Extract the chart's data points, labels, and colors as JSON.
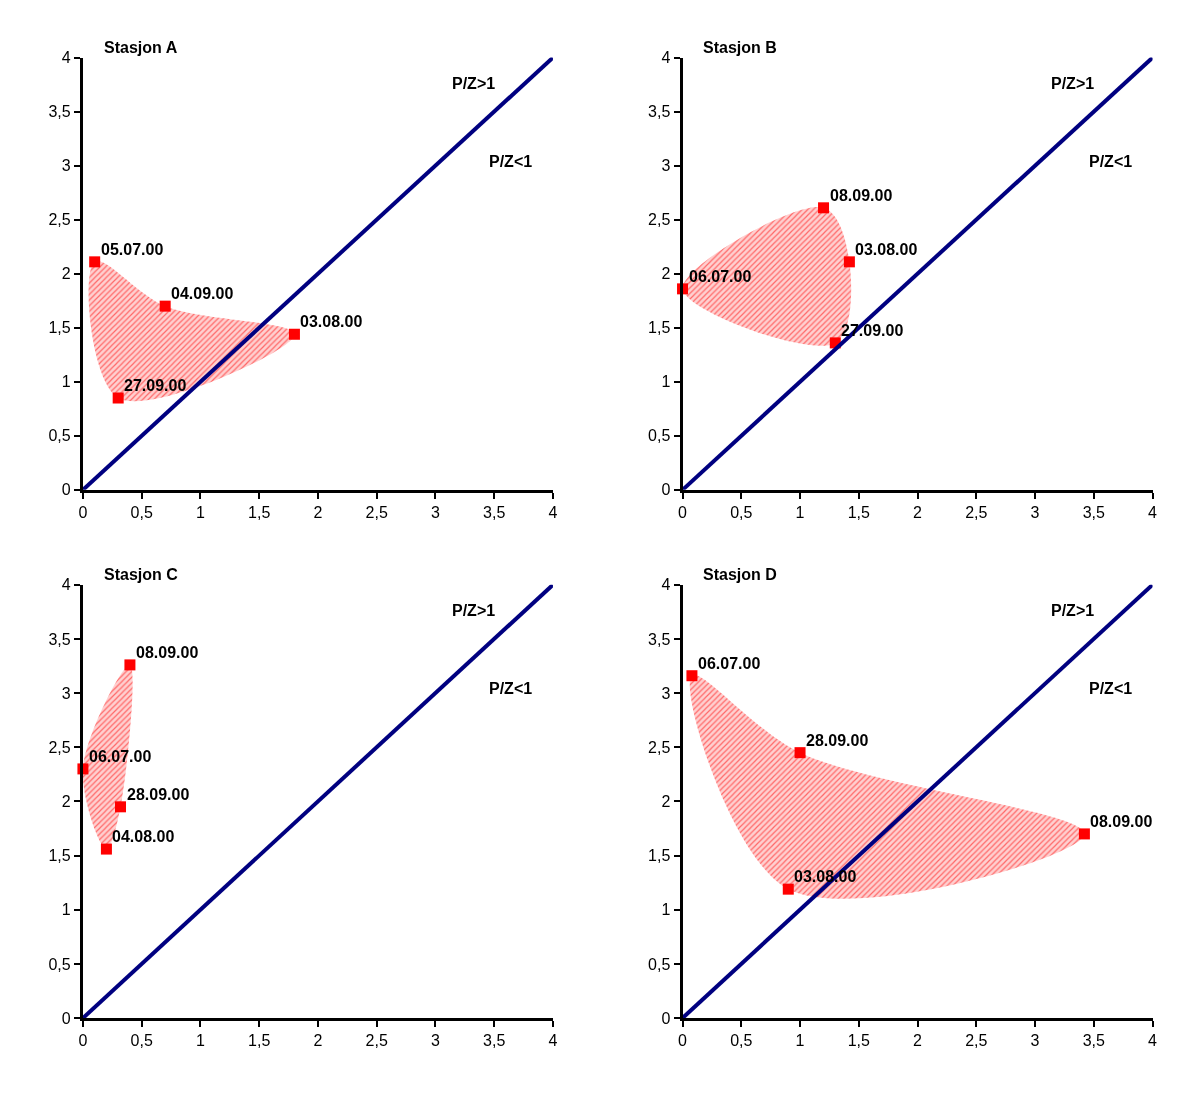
{
  "chart_data": [
    {
      "type": "area",
      "title": "Stasjon A",
      "xlim": [
        0,
        4
      ],
      "ylim": [
        0,
        4
      ],
      "xticks": [
        0,
        {
          "value": 0.5,
          "label": "0,5"
        },
        1,
        {
          "value": 1.5,
          "label": "1,5"
        },
        2,
        {
          "value": 2.5,
          "label": "2,5"
        },
        3,
        {
          "value": 3.5,
          "label": "3,5"
        },
        4
      ],
      "yticks": [
        0,
        {
          "value": 0.5,
          "label": "0,5"
        },
        1,
        {
          "value": 1.5,
          "label": "1,5"
        },
        2,
        {
          "value": 2.5,
          "label": "2,5"
        },
        3,
        {
          "value": 3.5,
          "label": "3,5"
        },
        4
      ],
      "series": [
        {
          "marker": "square",
          "color": "#ff0000",
          "x": [
            0.1,
            0.7,
            1.8,
            0.3
          ],
          "values": [
            2.11,
            1.7,
            1.44,
            0.85
          ]
        },
        {
          "type": "line",
          "color": "#000080",
          "x": [
            0,
            4
          ],
          "values": [
            0,
            4
          ]
        }
      ],
      "annotations": [
        {
          "text": "05.07.00",
          "x": 0.1,
          "y": 2.11
        },
        {
          "text": "04.09.00",
          "x": 0.7,
          "y": 1.7
        },
        {
          "text": "03.08.00",
          "x": 1.8,
          "y": 1.44
        },
        {
          "text": "27.09.00",
          "x": 0.3,
          "y": 0.85
        },
        "P/Z>1",
        "P/Z<1"
      ]
    },
    {
      "type": "area",
      "title": "Stasjon B",
      "xlim": [
        0,
        4
      ],
      "ylim": [
        0,
        4
      ],
      "xticks": [
        0,
        {
          "value": 0.5,
          "label": "0,5"
        },
        1,
        {
          "value": 1.5,
          "label": "1,5"
        },
        2,
        {
          "value": 2.5,
          "label": "2,5"
        },
        3,
        {
          "value": 3.5,
          "label": "3,5"
        },
        4
      ],
      "yticks": [
        0,
        {
          "value": 0.5,
          "label": "0,5"
        },
        1,
        {
          "value": 1.5,
          "label": "1,5"
        },
        2,
        {
          "value": 2.5,
          "label": "2,5"
        },
        3,
        {
          "value": 3.5,
          "label": "3,5"
        },
        4
      ],
      "series": [
        {
          "marker": "square",
          "color": "#ff0000",
          "x": [
            0,
            1.2,
            1.42,
            1.3
          ],
          "values": [
            1.86,
            2.61,
            2.11,
            1.36
          ]
        },
        {
          "type": "line",
          "color": "#000080",
          "x": [
            0,
            4
          ],
          "values": [
            0,
            4
          ]
        }
      ],
      "annotations": [
        {
          "text": "06.07.00",
          "x": 0,
          "y": 1.86
        },
        {
          "text": "08.09.00",
          "x": 1.2,
          "y": 2.61
        },
        {
          "text": "03.08.00",
          "x": 1.42,
          "y": 2.11
        },
        {
          "text": "27.09.00",
          "x": 1.3,
          "y": 1.36
        },
        "P/Z>1",
        "P/Z<1"
      ]
    },
    {
      "type": "area",
      "title": "Stasjon C",
      "xlim": [
        0,
        4
      ],
      "ylim": [
        0,
        4
      ],
      "xticks": [
        0,
        {
          "value": 0.5,
          "label": "0,5"
        },
        1,
        {
          "value": 1.5,
          "label": "1,5"
        },
        2,
        {
          "value": 2.5,
          "label": "2,5"
        },
        3,
        {
          "value": 3.5,
          "label": "3,5"
        },
        4
      ],
      "yticks": [
        0,
        {
          "value": 0.5,
          "label": "0,5"
        },
        1,
        {
          "value": 1.5,
          "label": "1,5"
        },
        2,
        {
          "value": 2.5,
          "label": "2,5"
        },
        3,
        {
          "value": 3.5,
          "label": "3,5"
        },
        4
      ],
      "series": [
        {
          "marker": "square",
          "color": "#ff0000",
          "x": [
            0,
            0.4,
            0.32,
            0.2
          ],
          "values": [
            2.3,
            3.26,
            1.95,
            1.56
          ]
        },
        {
          "type": "line",
          "color": "#000080",
          "x": [
            0,
            4
          ],
          "values": [
            0,
            4
          ]
        }
      ],
      "annotations": [
        {
          "text": "06.07.00",
          "x": 0,
          "y": 2.3
        },
        {
          "text": "08.09.00",
          "x": 0.4,
          "y": 3.26
        },
        {
          "text": "28.09.00",
          "x": 0.32,
          "y": 1.95
        },
        {
          "text": "04.08.00",
          "x": 0.2,
          "y": 1.56
        },
        "P/Z>1",
        "P/Z<1"
      ]
    },
    {
      "type": "area",
      "title": "Stasjon D",
      "xlim": [
        0,
        4
      ],
      "ylim": [
        0,
        4
      ],
      "xticks": [
        0,
        {
          "value": 0.5,
          "label": "0,5"
        },
        1,
        {
          "value": 1.5,
          "label": "1,5"
        },
        2,
        {
          "value": 2.5,
          "label": "2,5"
        },
        3,
        {
          "value": 3.5,
          "label": "3,5"
        },
        4
      ],
      "yticks": [
        0,
        {
          "value": 0.5,
          "label": "0,5"
        },
        1,
        {
          "value": 1.5,
          "label": "1,5"
        },
        2,
        {
          "value": 2.5,
          "label": "2,5"
        },
        3,
        {
          "value": 3.5,
          "label": "3,5"
        },
        4
      ],
      "series": [
        {
          "marker": "square",
          "color": "#ff0000",
          "x": [
            0.08,
            1.0,
            3.42,
            0.9
          ],
          "values": [
            3.16,
            2.45,
            1.7,
            1.19
          ]
        },
        {
          "type": "line",
          "color": "#000080",
          "x": [
            0,
            4
          ],
          "values": [
            0,
            4
          ]
        }
      ],
      "annotations": [
        {
          "text": "06.07.00",
          "x": 0.08,
          "y": 3.16
        },
        {
          "text": "28.09.00",
          "x": 1.0,
          "y": 2.45
        },
        {
          "text": "08.09.00",
          "x": 3.42,
          "y": 1.7
        },
        {
          "text": "03.08.00",
          "x": 0.9,
          "y": 1.19
        },
        "P/Z>1",
        "P/Z<1"
      ]
    }
  ]
}
